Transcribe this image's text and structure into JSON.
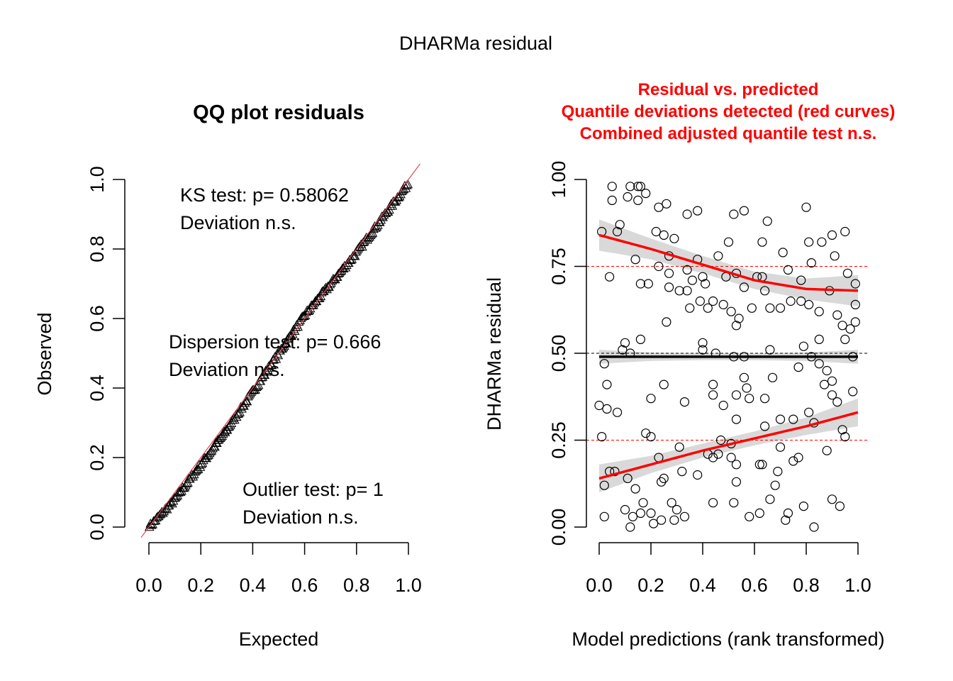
{
  "page_title": "DHARMa residual",
  "chart_data": [
    {
      "type": "scatter",
      "title": "QQ plot residuals",
      "xlabel": "Expected",
      "ylabel": "Observed",
      "xlim": [
        0,
        1
      ],
      "ylim": [
        0,
        1
      ],
      "xticks": [
        "0.0",
        "0.2",
        "0.4",
        "0.6",
        "0.8",
        "1.0"
      ],
      "yticks": [
        "0.0",
        "0.2",
        "0.4",
        "0.6",
        "0.8",
        "1.0"
      ],
      "marker": "triangle",
      "n_points": 250,
      "qq_curve": {
        "expected": [
          0,
          0.1,
          0.2,
          0.3,
          0.4,
          0.5,
          0.6,
          0.7,
          0.8,
          0.9,
          1.0
        ],
        "observed": [
          0,
          0.08,
          0.18,
          0.28,
          0.39,
          0.5,
          0.61,
          0.7,
          0.79,
          0.89,
          0.99
        ]
      },
      "reference_line": {
        "intercept": 0,
        "slope": 1,
        "color": "#e04050"
      },
      "annotations": {
        "ks_test": "KS test: p= 0.58062",
        "ks_result": "Deviation  n.s.",
        "dispersion_test": "Dispersion test: p= 0.666",
        "dispersion_result": "Deviation  n.s.",
        "outlier_test": "Outlier test: p= 1",
        "outlier_result": "Deviation  n.s."
      }
    },
    {
      "type": "scatter",
      "title_lines": [
        "Residual vs. predicted",
        "Quantile deviations detected (red curves)",
        "Combined adjusted quantile test n.s."
      ],
      "title_color": "#ff0000",
      "xlabel": "Model predictions (rank transformed)",
      "ylabel": "DHARMa residual",
      "xlim": [
        0,
        1
      ],
      "ylim": [
        0,
        1
      ],
      "xticks": [
        "0.0",
        "0.2",
        "0.4",
        "0.6",
        "0.8",
        "1.0"
      ],
      "yticks": [
        "0.00",
        "0.25",
        "0.50",
        "0.75",
        "1.00"
      ],
      "reference_lines": [
        0.25,
        0.5,
        0.75
      ],
      "quantile_curves": [
        {
          "q": 0.75,
          "color": "#ff0000",
          "x": [
            0,
            0.2,
            0.4,
            0.6,
            0.8,
            1.0
          ],
          "y": [
            0.84,
            0.8,
            0.755,
            0.71,
            0.685,
            0.68
          ],
          "band": [
            0.045,
            0.03,
            0.025,
            0.025,
            0.03,
            0.045
          ]
        },
        {
          "q": 0.5,
          "color": "#000000",
          "x": [
            0,
            0.2,
            0.4,
            0.6,
            0.8,
            1.0
          ],
          "y": [
            0.49,
            0.49,
            0.49,
            0.49,
            0.49,
            0.49
          ],
          "band": [
            0.02,
            0.012,
            0.01,
            0.01,
            0.012,
            0.02
          ]
        },
        {
          "q": 0.25,
          "color": "#ff0000",
          "x": [
            0,
            0.2,
            0.4,
            0.6,
            0.8,
            1.0
          ],
          "y": [
            0.14,
            0.18,
            0.22,
            0.255,
            0.29,
            0.33
          ],
          "band": [
            0.04,
            0.025,
            0.02,
            0.02,
            0.025,
            0.04
          ]
        }
      ],
      "points": [
        [
          0.01,
          0.85
        ],
        [
          0.04,
          0.72
        ],
        [
          0.05,
          0.98
        ],
        [
          0.05,
          0.94
        ],
        [
          0.07,
          0.85
        ],
        [
          0.08,
          0.87
        ],
        [
          0.12,
          0.98
        ],
        [
          0.11,
          0.95
        ],
        [
          0.15,
          0.98
        ],
        [
          0.16,
          0.98
        ],
        [
          0.15,
          0.94
        ],
        [
          0.18,
          0.96
        ],
        [
          0.23,
          0.92
        ],
        [
          0.26,
          0.93
        ],
        [
          0.22,
          0.85
        ],
        [
          0.25,
          0.84
        ],
        [
          0.29,
          0.83
        ],
        [
          0.27,
          0.78
        ],
        [
          0.14,
          0.77
        ],
        [
          0.16,
          0.7
        ],
        [
          0.19,
          0.7
        ],
        [
          0.23,
          0.75
        ],
        [
          0.27,
          0.73
        ],
        [
          0.27,
          0.69
        ],
        [
          0.31,
          0.68
        ],
        [
          0.34,
          0.9
        ],
        [
          0.38,
          0.91
        ],
        [
          0.34,
          0.74
        ],
        [
          0.38,
          0.77
        ],
        [
          0.4,
          0.72
        ],
        [
          0.41,
          0.7
        ],
        [
          0.34,
          0.68
        ],
        [
          0.36,
          0.71
        ],
        [
          0.39,
          0.65
        ],
        [
          0.35,
          0.63
        ],
        [
          0.42,
          0.63
        ],
        [
          0.46,
          0.78
        ],
        [
          0.5,
          0.82
        ],
        [
          0.52,
          0.9
        ],
        [
          0.56,
          0.91
        ],
        [
          0.49,
          0.72
        ],
        [
          0.53,
          0.73
        ],
        [
          0.56,
          0.69
        ],
        [
          0.61,
          0.72
        ],
        [
          0.63,
          0.72
        ],
        [
          0.64,
          0.68
        ],
        [
          0.65,
          0.88
        ],
        [
          0.63,
          0.82
        ],
        [
          0.71,
          0.79
        ],
        [
          0.73,
          0.74
        ],
        [
          0.74,
          0.65
        ],
        [
          0.78,
          0.71
        ],
        [
          0.8,
          0.92
        ],
        [
          0.81,
          0.82
        ],
        [
          0.82,
          0.76
        ],
        [
          0.86,
          0.82
        ],
        [
          0.9,
          0.84
        ],
        [
          0.91,
          0.78
        ],
        [
          0.95,
          0.85
        ],
        [
          0.96,
          0.73
        ],
        [
          0.99,
          0.7
        ],
        [
          0.99,
          0.64
        ],
        [
          0.92,
          0.61
        ],
        [
          0.94,
          0.58
        ],
        [
          0.97,
          0.57
        ],
        [
          0.99,
          0.59
        ],
        [
          0.95,
          0.54
        ],
        [
          0.89,
          0.68
        ],
        [
          0.85,
          0.62
        ],
        [
          0.81,
          0.64
        ],
        [
          0.78,
          0.65
        ],
        [
          0.7,
          0.63
        ],
        [
          0.66,
          0.63
        ],
        [
          0.59,
          0.63
        ],
        [
          0.54,
          0.6
        ],
        [
          0.53,
          0.58
        ],
        [
          0.51,
          0.62
        ],
        [
          0.48,
          0.64
        ],
        [
          0.44,
          0.65
        ],
        [
          0.26,
          0.59
        ],
        [
          0.4,
          0.53
        ],
        [
          0.4,
          0.51
        ],
        [
          0.45,
          0.5
        ],
        [
          0.52,
          0.49
        ],
        [
          0.56,
          0.49
        ],
        [
          0.66,
          0.51
        ],
        [
          0.79,
          0.52
        ],
        [
          0.82,
          0.49
        ],
        [
          0.85,
          0.54
        ],
        [
          0.98,
          0.49
        ],
        [
          0.16,
          0.54
        ],
        [
          0.1,
          0.53
        ],
        [
          0.09,
          0.51
        ],
        [
          0.12,
          0.5
        ],
        [
          0.02,
          0.47
        ],
        [
          0.77,
          0.46
        ],
        [
          0.85,
          0.47
        ],
        [
          0.88,
          0.45
        ],
        [
          0.87,
          0.41
        ],
        [
          0.9,
          0.42
        ],
        [
          0.98,
          0.39
        ],
        [
          0.9,
          0.38
        ],
        [
          0.92,
          0.36
        ],
        [
          0.03,
          0.41
        ],
        [
          0.25,
          0.41
        ],
        [
          0.2,
          0.37
        ],
        [
          0.33,
          0.36
        ],
        [
          0.44,
          0.41
        ],
        [
          0.44,
          0.38
        ],
        [
          0.48,
          0.35
        ],
        [
          0.53,
          0.38
        ],
        [
          0.56,
          0.43
        ],
        [
          0.57,
          0.4
        ],
        [
          0.58,
          0.37
        ],
        [
          0.64,
          0.37
        ],
        [
          0.67,
          0.43
        ],
        [
          0.0,
          0.35
        ],
        [
          0.03,
          0.34
        ],
        [
          0.07,
          0.33
        ],
        [
          0.53,
          0.31
        ],
        [
          0.64,
          0.29
        ],
        [
          0.7,
          0.31
        ],
        [
          0.75,
          0.31
        ],
        [
          0.81,
          0.33
        ],
        [
          0.83,
          0.3
        ],
        [
          0.94,
          0.28
        ],
        [
          0.95,
          0.26
        ],
        [
          0.88,
          0.22
        ],
        [
          0.01,
          0.26
        ],
        [
          0.18,
          0.27
        ],
        [
          0.2,
          0.26
        ],
        [
          0.31,
          0.23
        ],
        [
          0.42,
          0.21
        ],
        [
          0.46,
          0.21
        ],
        [
          0.47,
          0.25
        ],
        [
          0.51,
          0.24
        ],
        [
          0.44,
          0.2
        ],
        [
          0.51,
          0.2
        ],
        [
          0.53,
          0.18
        ],
        [
          0.63,
          0.18
        ],
        [
          0.7,
          0.23
        ],
        [
          0.77,
          0.2
        ],
        [
          0.75,
          0.19
        ],
        [
          0.02,
          0.12
        ],
        [
          0.04,
          0.16
        ],
        [
          0.06,
          0.16
        ],
        [
          0.11,
          0.14
        ],
        [
          0.14,
          0.11
        ],
        [
          0.23,
          0.2
        ],
        [
          0.25,
          0.14
        ],
        [
          0.24,
          0.13
        ],
        [
          0.32,
          0.16
        ],
        [
          0.38,
          0.15
        ],
        [
          0.53,
          0.13
        ],
        [
          0.62,
          0.18
        ],
        [
          0.69,
          0.16
        ],
        [
          0.68,
          0.12
        ],
        [
          0.52,
          0.07
        ],
        [
          0.44,
          0.07
        ],
        [
          0.66,
          0.08
        ],
        [
          0.79,
          0.06
        ],
        [
          0.9,
          0.08
        ],
        [
          0.93,
          0.06
        ],
        [
          0.02,
          0.03
        ],
        [
          0.1,
          0.05
        ],
        [
          0.13,
          0.03
        ],
        [
          0.12,
          0.0
        ],
        [
          0.16,
          0.04
        ],
        [
          0.17,
          0.07
        ],
        [
          0.2,
          0.04
        ],
        [
          0.21,
          0.01
        ],
        [
          0.24,
          0.02
        ],
        [
          0.28,
          0.07
        ],
        [
          0.3,
          0.05
        ],
        [
          0.33,
          0.03
        ],
        [
          0.29,
          0.02
        ],
        [
          0.58,
          0.03
        ],
        [
          0.62,
          0.04
        ],
        [
          0.73,
          0.04
        ],
        [
          0.72,
          0.02
        ],
        [
          0.83,
          0.0
        ]
      ]
    }
  ]
}
